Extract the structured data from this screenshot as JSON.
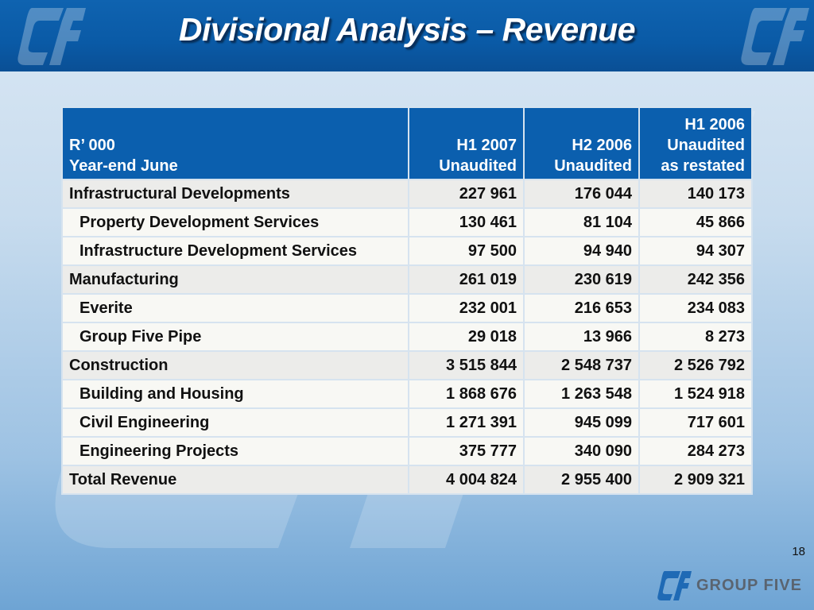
{
  "title": "Divisional Analysis – Revenue",
  "colors": {
    "header_band": "#0b5fae",
    "row_main": "#ececea",
    "row_sub": "#f8f8f4",
    "text": "#111111",
    "logo_blue": "#1f6ab5",
    "logo_grey": "#5a6470"
  },
  "table": {
    "header": {
      "col0_line1": "R’ 000",
      "col0_line2": "Year-end June",
      "col1_line1": "H1 2007",
      "col1_line2": "Unaudited",
      "col2_line1": "H2 2006",
      "col2_line2": "Unaudited",
      "col3_line1": "H1 2006",
      "col3_line2": "Unaudited",
      "col3_line3": "as restated"
    },
    "rows": [
      {
        "label": "Infrastructural Developments",
        "h1_2007": "227 961",
        "h2_2006": "176 044",
        "h1_2006": "140 173"
      },
      {
        "label": "Property Development Services",
        "h1_2007": "130 461",
        "h2_2006": "81 104",
        "h1_2006": "45 866"
      },
      {
        "label": "Infrastructure Development Services",
        "h1_2007": "97 500",
        "h2_2006": "94 940",
        "h1_2006": "94 307"
      },
      {
        "label": "Manufacturing",
        "h1_2007": "261 019",
        "h2_2006": "230 619",
        "h1_2006": "242 356"
      },
      {
        "label": "Everite",
        "h1_2007": "232 001",
        "h2_2006": "216 653",
        "h1_2006": "234 083"
      },
      {
        "label": "Group Five Pipe",
        "h1_2007": "29 018",
        "h2_2006": "13 966",
        "h1_2006": "8 273"
      },
      {
        "label": "Construction",
        "h1_2007": "3 515 844",
        "h2_2006": "2 548 737",
        "h1_2006": "2 526 792"
      },
      {
        "label": "Building and Housing",
        "h1_2007": "1 868 676",
        "h2_2006": "1 263 548",
        "h1_2006": "1 524 918"
      },
      {
        "label": "Civil Engineering",
        "h1_2007": "1 271 391",
        "h2_2006": "945 099",
        "h1_2006": "717 601"
      },
      {
        "label": "Engineering Projects",
        "h1_2007": "375 777",
        "h2_2006": "340 090",
        "h1_2006": "284 273"
      },
      {
        "label": "Total Revenue",
        "h1_2007": "4 004 824",
        "h2_2006": "2 955 400",
        "h1_2006": "2 909 321"
      }
    ]
  },
  "page_number": "18",
  "logo": {
    "text": "GROUP FIVE",
    "icon": "group-five-logo-icon"
  }
}
